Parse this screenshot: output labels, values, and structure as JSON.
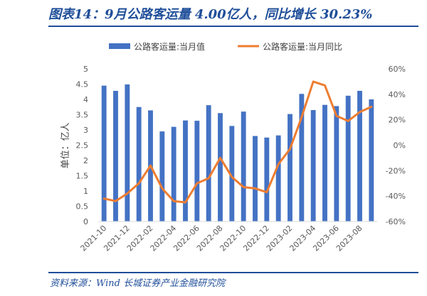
{
  "header": {
    "title": "图表14：9月公路客运量 4.00亿人，同比增长 30.23%"
  },
  "footer": {
    "source": "资料来源：Wind 长城证券产业金融研究院"
  },
  "colors": {
    "bar": "#4472c4",
    "line": "#ed7d31",
    "accent": "#1f4e99"
  },
  "chart_data": {
    "type": "bar+line",
    "ylabel": "单位：亿人",
    "ylim": [
      0,
      5
    ],
    "y2lim": [
      -60,
      60
    ],
    "y_ticks": [
      "0",
      "0.5",
      "1",
      "1.5",
      "2",
      "2.5",
      "3",
      "3.5",
      "4",
      "4.5",
      "5"
    ],
    "y2_ticks": [
      "-60%",
      "-40%",
      "-20%",
      "0%",
      "20%",
      "40%",
      "60%"
    ],
    "x_ticks": [
      "2021-10",
      "2021-12",
      "2022-02",
      "2022-04",
      "2022-06",
      "2022-08",
      "2022-10",
      "2022-12",
      "2023-02",
      "2023-04",
      "2023-06",
      "2023-08"
    ],
    "categories": [
      "2021-10",
      "2021-11",
      "2021-12",
      "2022-01",
      "2022-02",
      "2022-03",
      "2022-04",
      "2022-05",
      "2022-06",
      "2022-07",
      "2022-08",
      "2022-09",
      "2022-10",
      "2022-11",
      "2022-12",
      "2023-01",
      "2023-02",
      "2023-03",
      "2023-04",
      "2023-05",
      "2023-06",
      "2023-07",
      "2023-08",
      "2023-09"
    ],
    "series": [
      {
        "name": "公路客运量:当月值",
        "axis": "left",
        "type": "bar",
        "values": [
          4.45,
          4.28,
          4.49,
          3.75,
          3.64,
          2.95,
          3.1,
          3.31,
          3.3,
          3.81,
          3.55,
          3.13,
          3.6,
          2.8,
          2.75,
          2.82,
          3.52,
          4.18,
          3.65,
          3.82,
          3.78,
          4.12,
          4.28,
          4.0
        ]
      },
      {
        "name": "公路客运量:当月同比",
        "axis": "right",
        "type": "line",
        "values": [
          -42,
          -44,
          -38,
          -30,
          -16,
          -34,
          -44,
          -45,
          -30,
          -26,
          -10,
          -25,
          -33,
          -34,
          -37,
          -15,
          -3,
          22,
          50,
          47,
          23,
          19,
          26,
          30.23
        ]
      }
    ]
  }
}
